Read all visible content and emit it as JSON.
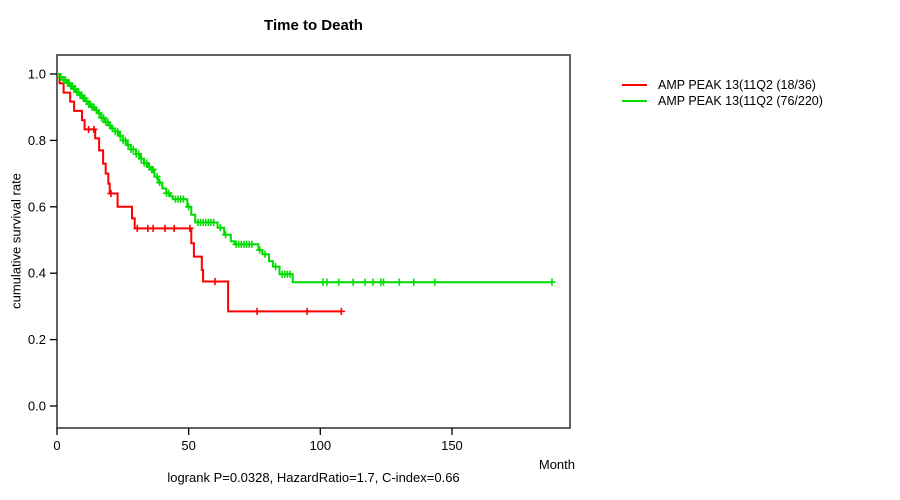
{
  "chart_data": {
    "type": "line",
    "subtype": "kaplan-meier-step",
    "title": "Time to Death",
    "xlabel": "Month",
    "ylabel": "cumulative survival rate",
    "footer": "logrank P=0.0328, HazardRatio=1.7, C-index=0.66",
    "xlim": [
      0,
      195
    ],
    "ylim": [
      0.0,
      1.0
    ],
    "grid": false,
    "legend_position": "right-outside",
    "x_ticks": [
      {
        "value": 0,
        "label": "0"
      },
      {
        "value": 50,
        "label": "50"
      },
      {
        "value": 100,
        "label": "100"
      },
      {
        "value": 150,
        "label": "150"
      }
    ],
    "y_ticks": [
      {
        "value": 0.0,
        "label": "0.0"
      },
      {
        "value": 0.2,
        "label": "0.2"
      },
      {
        "value": 0.4,
        "label": "0.4"
      },
      {
        "value": 0.6,
        "label": "0.6"
      },
      {
        "value": 0.8,
        "label": "0.8"
      },
      {
        "value": 1.0,
        "label": "1.0"
      }
    ],
    "legend": [
      {
        "label": "AMP PEAK 13(11Q2 (18/36)",
        "color": "#ff0000"
      },
      {
        "label": "AMP PEAK 13(11Q2 (76/220)",
        "color": "#00dc00"
      }
    ],
    "series": [
      {
        "name": "AMP PEAK 13(11Q2 (18/36)",
        "color": "#ff0000",
        "steps": [
          [
            0,
            1.0
          ],
          [
            1,
            0.972
          ],
          [
            2.5,
            0.944
          ],
          [
            5,
            0.917
          ],
          [
            6.5,
            0.889
          ],
          [
            9.5,
            0.861
          ],
          [
            10.5,
            0.833
          ],
          [
            14.5,
            0.806
          ],
          [
            16,
            0.77
          ],
          [
            17.5,
            0.73
          ],
          [
            18.5,
            0.7
          ],
          [
            19.5,
            0.67
          ],
          [
            20,
            0.64
          ],
          [
            23,
            0.6
          ],
          [
            28.5,
            0.565
          ],
          [
            29.5,
            0.535
          ],
          [
            51,
            0.49
          ],
          [
            52,
            0.45
          ],
          [
            55,
            0.41
          ],
          [
            55.5,
            0.375
          ],
          [
            65,
            0.285
          ],
          [
            108,
            0.285
          ]
        ],
        "censor_months": [
          12,
          14,
          20.5,
          30.5,
          34.5,
          36.5,
          41,
          44.5,
          50.5,
          60,
          76,
          95,
          108
        ]
      },
      {
        "name": "AMP PEAK 13(11Q2 (76/220)",
        "color": "#00dc00",
        "steps": [
          [
            0,
            1.0
          ],
          [
            1.2,
            0.991
          ],
          [
            2.4,
            0.982
          ],
          [
            3.6,
            0.973
          ],
          [
            4.8,
            0.964
          ],
          [
            6,
            0.955
          ],
          [
            7.2,
            0.945
          ],
          [
            8.4,
            0.936
          ],
          [
            9.6,
            0.927
          ],
          [
            10.8,
            0.918
          ],
          [
            12,
            0.909
          ],
          [
            13.2,
            0.9
          ],
          [
            14.4,
            0.891
          ],
          [
            15.6,
            0.882
          ],
          [
            16.8,
            0.868
          ],
          [
            18,
            0.855
          ],
          [
            19.4,
            0.845
          ],
          [
            20.7,
            0.836
          ],
          [
            22,
            0.827
          ],
          [
            23.5,
            0.814
          ],
          [
            25,
            0.8
          ],
          [
            26.5,
            0.786
          ],
          [
            28,
            0.773
          ],
          [
            30,
            0.759
          ],
          [
            31.5,
            0.745
          ],
          [
            33,
            0.732
          ],
          [
            34.5,
            0.72
          ],
          [
            35.5,
            0.712
          ],
          [
            37,
            0.691
          ],
          [
            38.5,
            0.673
          ],
          [
            40,
            0.655
          ],
          [
            41.5,
            0.641
          ],
          [
            43,
            0.632
          ],
          [
            44,
            0.623
          ],
          [
            49.5,
            0.6
          ],
          [
            51,
            0.576
          ],
          [
            52.5,
            0.553
          ],
          [
            61,
            0.537
          ],
          [
            63.5,
            0.516
          ],
          [
            66,
            0.496
          ],
          [
            67.5,
            0.487
          ],
          [
            76.5,
            0.47
          ],
          [
            78,
            0.457
          ],
          [
            80.5,
            0.436
          ],
          [
            82,
            0.42
          ],
          [
            84.5,
            0.397
          ],
          [
            89.5,
            0.373
          ],
          [
            188,
            0.373
          ]
        ],
        "censor_months": [
          1.5,
          2.5,
          3.2,
          4,
          4.6,
          5.2,
          5.8,
          6.4,
          7,
          7.6,
          8.2,
          8.8,
          9.4,
          10,
          10.6,
          11.2,
          12.1,
          12.7,
          13.3,
          14,
          15,
          16,
          16.9,
          17.7,
          18.5,
          19.3,
          20.1,
          21,
          22.1,
          23,
          24,
          25.1,
          26,
          27,
          28.1,
          29,
          30.1,
          31,
          32,
          33.1,
          34,
          35,
          36,
          36.5,
          38,
          39,
          41.6,
          42.5,
          45,
          46,
          47,
          48,
          50,
          53.5,
          54.5,
          55.5,
          56.5,
          57.5,
          58.5,
          59.5,
          62,
          64,
          68,
          69,
          70,
          71,
          72,
          73,
          74,
          77,
          79,
          83,
          85.5,
          86.5,
          87.5,
          88.5,
          101,
          102.5,
          107,
          112.5,
          117,
          120,
          123,
          124,
          130,
          135.5,
          143.5,
          188
        ]
      }
    ]
  }
}
